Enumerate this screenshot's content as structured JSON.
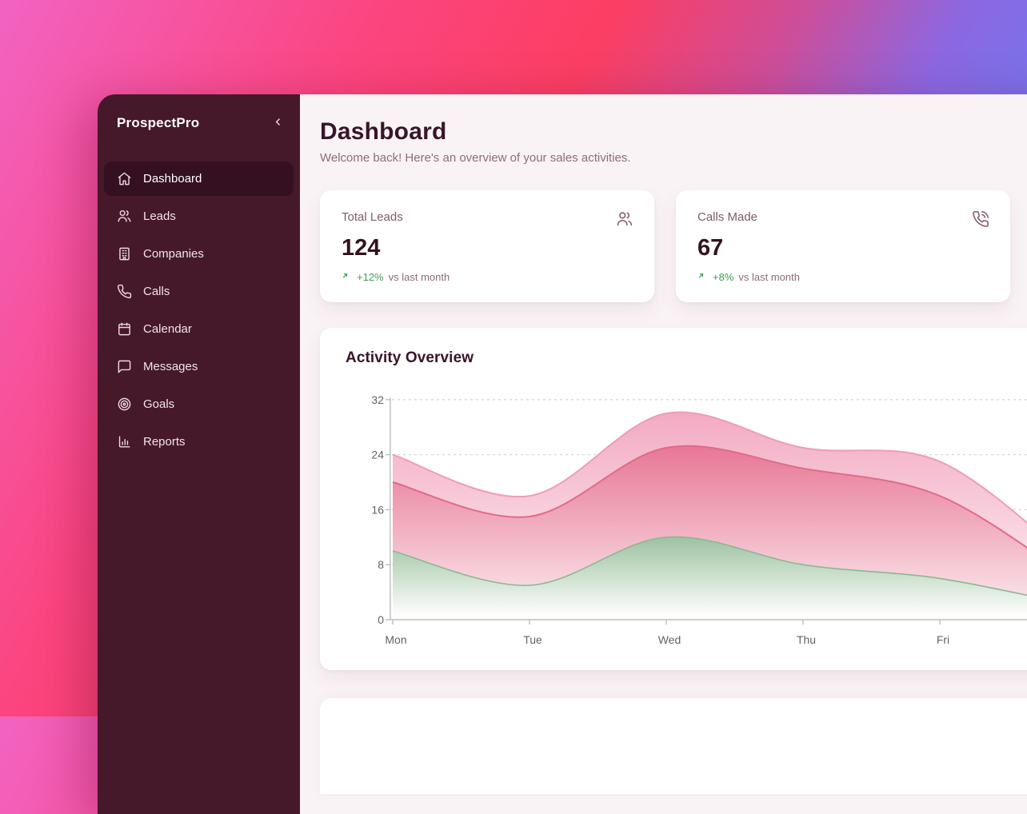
{
  "app": {
    "name": "ProspectPro"
  },
  "sidebar": {
    "items": [
      {
        "label": "Dashboard",
        "icon": "home",
        "active": true
      },
      {
        "label": "Leads",
        "icon": "users",
        "active": false
      },
      {
        "label": "Companies",
        "icon": "building",
        "active": false
      },
      {
        "label": "Calls",
        "icon": "phone",
        "active": false
      },
      {
        "label": "Calendar",
        "icon": "calendar",
        "active": false
      },
      {
        "label": "Messages",
        "icon": "message",
        "active": false
      },
      {
        "label": "Goals",
        "icon": "target",
        "active": false
      },
      {
        "label": "Reports",
        "icon": "bar-chart",
        "active": false
      }
    ]
  },
  "header": {
    "title": "Dashboard",
    "subtitle": "Welcome back! Here's an overview of your sales activities."
  },
  "stats": [
    {
      "label": "Total Leads",
      "value": "124",
      "delta": "+12%",
      "delta_suffix": "vs last month",
      "icon": "users",
      "trend": "up"
    },
    {
      "label": "Calls Made",
      "value": "67",
      "delta": "+8%",
      "delta_suffix": "vs last month",
      "icon": "phone-call",
      "trend": "up"
    }
  ],
  "chart_card": {
    "title": "Activity Overview"
  },
  "chart_data": {
    "type": "area",
    "title": "Activity Overview",
    "categories": [
      "Mon",
      "Tue",
      "Wed",
      "Thu",
      "Fri"
    ],
    "series": [
      {
        "name": "outer-pink-band",
        "values": [
          24,
          18,
          30,
          25,
          23
        ],
        "offscreen_next": 8,
        "line_color": "#ee9cb8",
        "fill_top": "#f3aac3",
        "fill_bottom": "#fdf1f5"
      },
      {
        "name": "mid-rose-band",
        "values": [
          20,
          15,
          25,
          22,
          18
        ],
        "offscreen_next": 5.5,
        "line_color": "#e16a8a",
        "fill_top": "#e87795",
        "fill_bottom": "#fbe9ee"
      },
      {
        "name": "green-band",
        "values": [
          10,
          5,
          12,
          8,
          6
        ],
        "offscreen_next": 2,
        "line_color": "#8ab890",
        "fill_top": "#9dc2a1",
        "fill_bottom": "#fefefd"
      }
    ],
    "y_ticks": [
      0,
      8,
      16,
      24,
      32
    ],
    "ylim": [
      0,
      32
    ],
    "xlabel": "",
    "ylabel": "",
    "grid": "dashed-horizontal",
    "legend": null
  },
  "colors": {
    "sidebar_bg": "#45182a",
    "sidebar_active_bg": "#351021",
    "main_bg": "#faf3f5",
    "card_bg": "#ffffff",
    "heading_text": "#39142a",
    "muted_text": "#8f6b7b",
    "accent_green": "#3f9c54",
    "gradient_pink": "#f263c2",
    "gradient_red": "#fc3e62",
    "gradient_indigo": "#7276ee"
  }
}
